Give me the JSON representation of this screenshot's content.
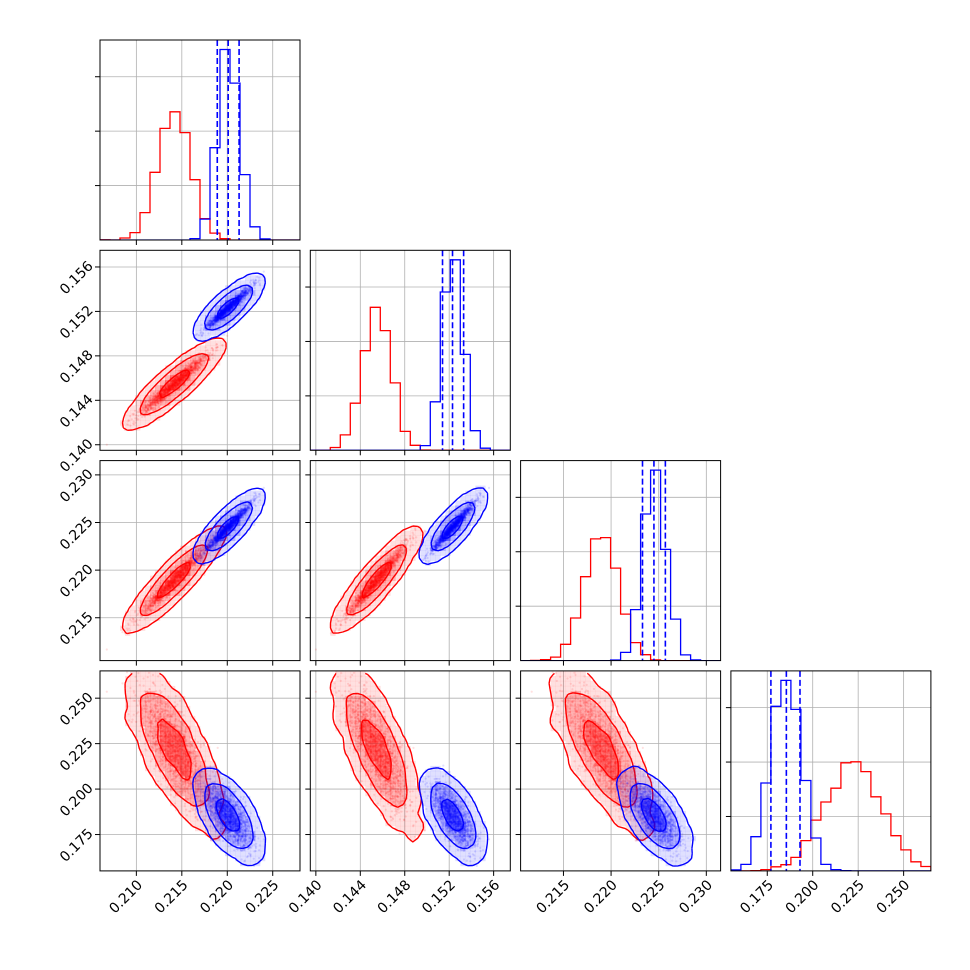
{
  "chart_data": {
    "type": "corner",
    "series": [
      {
        "name": "",
        "color": "#ff0000",
        "mean": [
          0.2142,
          0.1455,
          0.219,
          0.222
        ],
        "sd": [
          0.0018,
          0.0013,
          0.0018,
          0.0155
        ],
        "corr": {
          "0-1": 0.97,
          "0-2": 0.97,
          "1-2": 0.97,
          "0-3": -0.75,
          "1-3": -0.75,
          "2-3": -0.75
        }
      },
      {
        "name": "",
        "color": "#0000ff",
        "mean": [
          0.2201,
          0.1523,
          0.2245,
          0.1855
        ],
        "sd": [
          0.0012,
          0.0009,
          0.0012,
          0.0085
        ],
        "corr": {
          "0-1": 0.97,
          "0-2": 0.97,
          "1-2": 0.97,
          "0-3": -0.7,
          "1-3": -0.7,
          "2-3": -0.7
        }
      }
    ],
    "quantile_lines": {
      "color": "#0000ff",
      "values": [
        [
          0.2189,
          0.2201,
          0.2213
        ],
        [
          0.1514,
          0.1523,
          0.1533
        ],
        [
          0.2233,
          0.2245,
          0.2257
        ],
        [
          0.177,
          0.1855,
          0.193
        ]
      ]
    },
    "axes": [
      {
        "range": [
          0.206,
          0.228
        ],
        "ticks": [
          "0.210",
          "0.215",
          "0.220",
          "0.225"
        ]
      },
      {
        "range": [
          0.1395,
          0.1575
        ],
        "ticks": [
          "0.140",
          "0.144",
          "0.148",
          "0.152",
          "0.156"
        ]
      },
      {
        "range": [
          0.2105,
          0.2315
        ],
        "ticks": [
          "0.215",
          "0.220",
          "0.225",
          "0.230"
        ]
      },
      {
        "range": [
          0.155,
          0.265
        ],
        "ticks": [
          "0.175",
          "0.200",
          "0.225",
          "0.250"
        ]
      }
    ],
    "grid": true
  }
}
